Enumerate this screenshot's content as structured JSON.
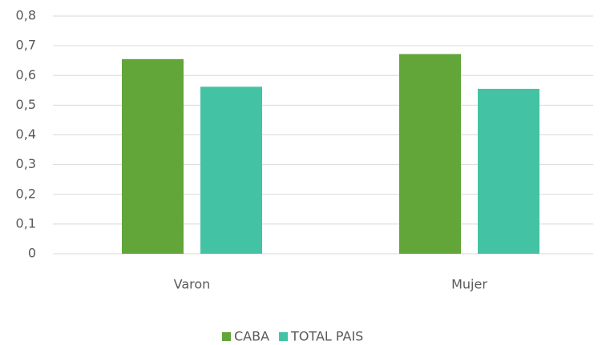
{
  "chart_data": {
    "type": "bar",
    "categories": [
      "Varon",
      "Mujer"
    ],
    "series": [
      {
        "name": "CABA",
        "color": "#62a539",
        "values": [
          0.655,
          0.672
        ]
      },
      {
        "name": "TOTAL PAIS",
        "color": "#43c3a4",
        "values": [
          0.562,
          0.555
        ]
      }
    ],
    "ylim": [
      0,
      0.8
    ],
    "yticks": [
      0,
      {
        "value": 0.1,
        "label": "0,1"
      },
      {
        "value": 0.2,
        "label": "0,2"
      },
      {
        "value": 0.3,
        "label": "0,3"
      },
      {
        "value": 0.4,
        "label": "0,4"
      },
      {
        "value": 0.5,
        "label": "0,5"
      },
      {
        "value": 0.6,
        "label": "0,6"
      },
      {
        "value": 0.7,
        "label": "0,7"
      },
      {
        "value": 0.8,
        "label": "0,8"
      }
    ],
    "grid": true,
    "legend": "bottom"
  }
}
